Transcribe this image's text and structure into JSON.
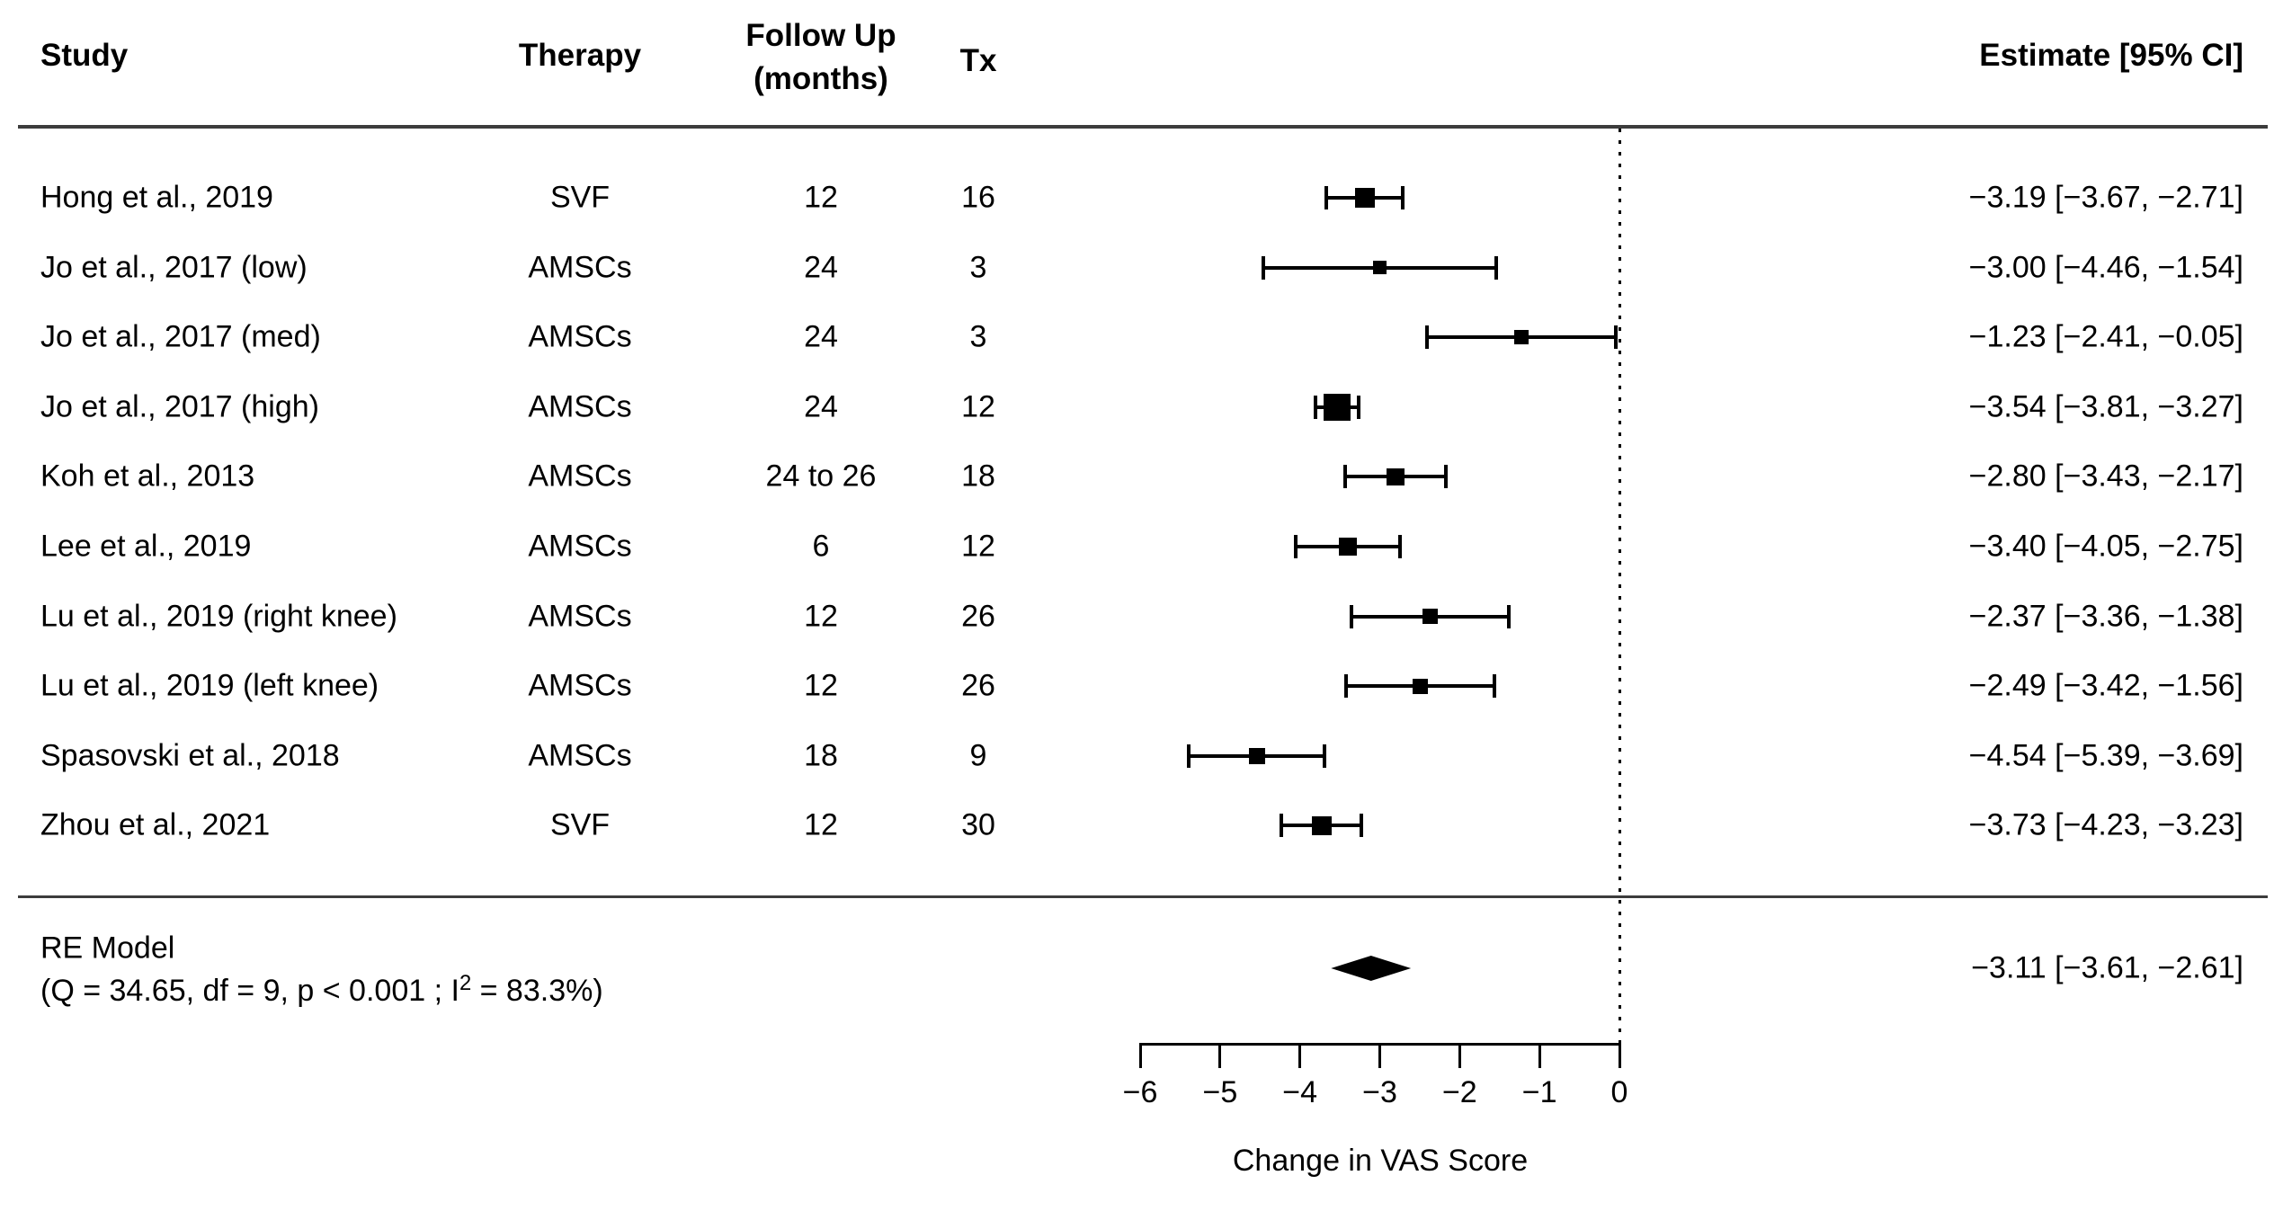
{
  "headers": {
    "study": "Study",
    "therapy": "Therapy",
    "followup_line1": "Follow Up",
    "followup_line2": "(months)",
    "tx": "Tx",
    "estimate": "Estimate [95% CI]"
  },
  "chart_data": {
    "type": "scatter",
    "variant": "forest-plot",
    "xlabel": "Change in VAS Score",
    "xlim": [
      -6,
      0
    ],
    "x_axis_ticks": [
      -6,
      -5,
      -4,
      -3,
      -2,
      -1,
      0
    ],
    "tick_labels": [
      "−6",
      "−5",
      "−4",
      "−3",
      "−2",
      "−1",
      "0"
    ],
    "reference_line_x": 0,
    "grid": false,
    "marker_color": "#000000",
    "studies": [
      {
        "study": "Hong et al., 2019",
        "therapy": "SVF",
        "followup_months": "12",
        "tx": "16",
        "estimate": -3.19,
        "ci_lower": -3.67,
        "ci_upper": -2.71,
        "estimate_label": "−3.19 [−3.67, −2.71]"
      },
      {
        "study": "Jo et al., 2017 (low)",
        "therapy": "AMSCs",
        "followup_months": "24",
        "tx": "3",
        "estimate": -3.0,
        "ci_lower": -4.46,
        "ci_upper": -1.54,
        "estimate_label": "−3.00 [−4.46, −1.54]"
      },
      {
        "study": "Jo et al., 2017 (med)",
        "therapy": "AMSCs",
        "followup_months": "24",
        "tx": "3",
        "estimate": -1.23,
        "ci_lower": -2.41,
        "ci_upper": -0.05,
        "estimate_label": "−1.23 [−2.41, −0.05]"
      },
      {
        "study": "Jo et al., 2017 (high)",
        "therapy": "AMSCs",
        "followup_months": "24",
        "tx": "12",
        "estimate": -3.54,
        "ci_lower": -3.81,
        "ci_upper": -3.27,
        "estimate_label": "−3.54 [−3.81, −3.27]"
      },
      {
        "study": "Koh et al., 2013",
        "therapy": "AMSCs",
        "followup_months": "24 to 26",
        "tx": "18",
        "estimate": -2.8,
        "ci_lower": -3.43,
        "ci_upper": -2.17,
        "estimate_label": "−2.80 [−3.43, −2.17]"
      },
      {
        "study": "Lee et al., 2019",
        "therapy": "AMSCs",
        "followup_months": "6",
        "tx": "12",
        "estimate": -3.4,
        "ci_lower": -4.05,
        "ci_upper": -2.75,
        "estimate_label": "−3.40 [−4.05, −2.75]"
      },
      {
        "study": "Lu et al., 2019 (right knee)",
        "therapy": "AMSCs",
        "followup_months": "12",
        "tx": "26",
        "estimate": -2.37,
        "ci_lower": -3.36,
        "ci_upper": -1.38,
        "estimate_label": "−2.37 [−3.36, −1.38]"
      },
      {
        "study": "Lu et al., 2019 (left knee)",
        "therapy": "AMSCs",
        "followup_months": "12",
        "tx": "26",
        "estimate": -2.49,
        "ci_lower": -3.42,
        "ci_upper": -1.56,
        "estimate_label": "−2.49 [−3.42, −1.56]"
      },
      {
        "study": "Spasovski et al., 2018",
        "therapy": "AMSCs",
        "followup_months": "18",
        "tx": "9",
        "estimate": -4.54,
        "ci_lower": -5.39,
        "ci_upper": -3.69,
        "estimate_label": "−4.54 [−5.39, −3.69]"
      },
      {
        "study": "Zhou et al., 2021",
        "therapy": "SVF",
        "followup_months": "12",
        "tx": "30",
        "estimate": -3.73,
        "ci_lower": -4.23,
        "ci_upper": -3.23,
        "estimate_label": "−3.73 [−4.23, −3.23]"
      }
    ],
    "summary": {
      "label": "RE Model",
      "heterogeneity_before": "(Q = 34.65, df = 9, p < 0.001 ; I",
      "heterogeneity_sup": "2",
      "heterogeneity_after": " = 83.3%)",
      "estimate": -3.11,
      "ci_lower": -3.61,
      "ci_upper": -2.61,
      "estimate_label": "−3.11 [−3.61, −2.61]"
    }
  }
}
